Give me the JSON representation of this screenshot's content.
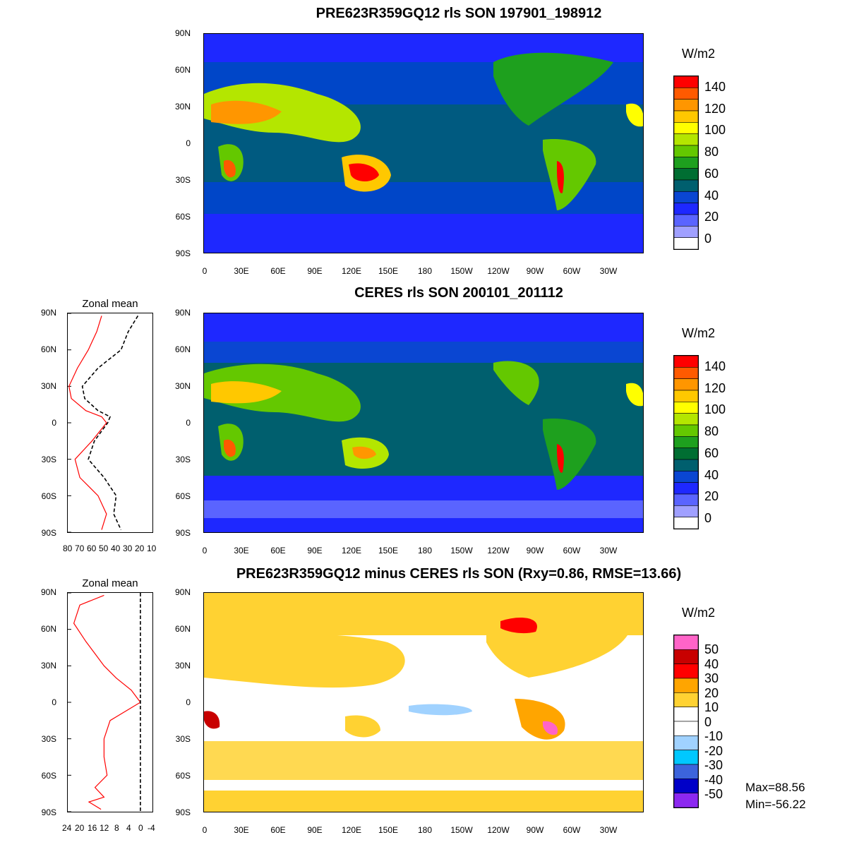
{
  "panels": [
    {
      "title": "PRE623R359GQ12 rls SON 197901_198912",
      "unit": "W/m2",
      "legend_labels": [
        "140",
        "120",
        "100",
        "80",
        "60",
        "40",
        "20",
        "0"
      ],
      "legend_colors": [
        "#ff0000",
        "#ff5a00",
        "#ff9600",
        "#ffc800",
        "#ffff00",
        "#b4e600",
        "#64c800",
        "#1ea01e",
        "#006e32",
        "#005f6e",
        "#0a46d2",
        "#1e28ff",
        "#5a64ff",
        "#a0a0ff",
        "#ffffff"
      ]
    },
    {
      "title": "CERES rls SON 200101_201112",
      "unit": "W/m2",
      "zonal_title": "Zonal mean",
      "legend_labels": [
        "140",
        "120",
        "100",
        "80",
        "60",
        "40",
        "20",
        "0"
      ],
      "legend_colors": [
        "#ff0000",
        "#ff5a00",
        "#ff9600",
        "#ffc800",
        "#ffff00",
        "#b4e600",
        "#64c800",
        "#1ea01e",
        "#006e32",
        "#005f6e",
        "#0a46d2",
        "#1e28ff",
        "#5a64ff",
        "#a0a0ff",
        "#ffffff"
      ],
      "zonal_xticks": [
        "80",
        "70",
        "60",
        "50",
        "40",
        "30",
        "20",
        "10"
      ]
    },
    {
      "title": "PRE623R359GQ12 minus CERES rls SON (Rxy=0.86, RMSE=13.66)",
      "unit": "W/m2",
      "zonal_title": "Zonal mean",
      "legend_labels": [
        "50",
        "40",
        "30",
        "20",
        "10",
        "0",
        "-10",
        "-20",
        "-30",
        "-40",
        "-50"
      ],
      "legend_colors": [
        "#ff64c8",
        "#c80000",
        "#ff0000",
        "#ffa500",
        "#ffd232",
        "#ffffff",
        "#ffffff",
        "#a0d2ff",
        "#00c8ff",
        "#3c64dc",
        "#0000c8",
        "#8c28f0"
      ],
      "zonal_xticks": [
        "24",
        "20",
        "16",
        "12",
        "8",
        "4",
        "0",
        "-4"
      ],
      "max_label": "Max=88.56",
      "min_label": "Min=-56.22"
    }
  ],
  "lat_ticks": [
    "90N",
    "60N",
    "30N",
    "0",
    "30S",
    "60S",
    "90S"
  ],
  "lon_ticks": [
    "0",
    "30E",
    "60E",
    "90E",
    "120E",
    "150E",
    "180",
    "150W",
    "120W",
    "90W",
    "60W",
    "30W"
  ],
  "chart_data": [
    {
      "type": "heatmap",
      "title": "PRE623R359GQ12 rls SON 197901_198912",
      "xlabel": "",
      "ylabel": "",
      "x_range_deg_east": [
        0,
        360
      ],
      "y_range_deg_north": [
        -90,
        90
      ],
      "colorbar_unit": "W/m2",
      "colorbar_levels": [
        0,
        10,
        20,
        30,
        40,
        50,
        60,
        70,
        80,
        90,
        100,
        110,
        120,
        130,
        140
      ]
    },
    {
      "type": "heatmap",
      "title": "CERES rls SON 200101_201112",
      "xlabel": "",
      "ylabel": "",
      "x_range_deg_east": [
        0,
        360
      ],
      "y_range_deg_north": [
        -90,
        90
      ],
      "colorbar_unit": "W/m2",
      "colorbar_levels": [
        0,
        10,
        20,
        30,
        40,
        50,
        60,
        70,
        80,
        90,
        100,
        110,
        120,
        130,
        140
      ]
    },
    {
      "type": "line",
      "title": "Zonal mean",
      "xlabel": "",
      "ylabel": "",
      "xlim": [
        80,
        10
      ],
      "ylim": [
        -90,
        90
      ],
      "series": [
        {
          "style": "red-solid",
          "x": [
            52,
            56,
            63,
            72,
            79,
            77,
            65,
            52,
            48,
            60,
            74,
            70,
            55,
            48,
            52
          ],
          "y": [
            88,
            75,
            60,
            45,
            30,
            20,
            10,
            5,
            0,
            -15,
            -30,
            -45,
            -60,
            -75,
            -88
          ]
        },
        {
          "style": "black-dashed",
          "x": [
            22,
            30,
            36,
            55,
            68,
            66,
            55,
            45,
            47,
            58,
            63,
            50,
            40,
            42,
            36
          ],
          "y": [
            88,
            75,
            60,
            45,
            30,
            20,
            10,
            5,
            0,
            -15,
            -30,
            -45,
            -60,
            -75,
            -88
          ]
        }
      ]
    },
    {
      "type": "heatmap",
      "title": "PRE623R359GQ12 minus CERES rls SON (Rxy=0.86, RMSE=13.66)",
      "xlabel": "",
      "ylabel": "",
      "x_range_deg_east": [
        0,
        360
      ],
      "y_range_deg_north": [
        -90,
        90
      ],
      "colorbar_unit": "W/m2",
      "colorbar_levels": [
        -50,
        -40,
        -30,
        -20,
        -10,
        0,
        10,
        20,
        30,
        40,
        50
      ],
      "max": 88.56,
      "min": -56.22,
      "Rxy": 0.86,
      "RMSE": 13.66
    },
    {
      "type": "line",
      "title": "Zonal mean",
      "xlabel": "",
      "ylabel": "",
      "xlim": [
        24,
        -4
      ],
      "ylim": [
        -90,
        90
      ],
      "series": [
        {
          "style": "red-solid",
          "x": [
            12,
            20,
            22,
            18,
            15,
            12,
            8,
            3,
            0,
            10,
            12,
            12,
            11,
            15,
            12,
            17,
            13
          ],
          "y": [
            88,
            80,
            65,
            50,
            40,
            30,
            20,
            10,
            0,
            -15,
            -30,
            -45,
            -60,
            -70,
            -78,
            -82,
            -88
          ]
        },
        {
          "style": "black-dashed",
          "x": [
            0,
            0
          ],
          "y": [
            90,
            -90
          ]
        }
      ]
    }
  ]
}
